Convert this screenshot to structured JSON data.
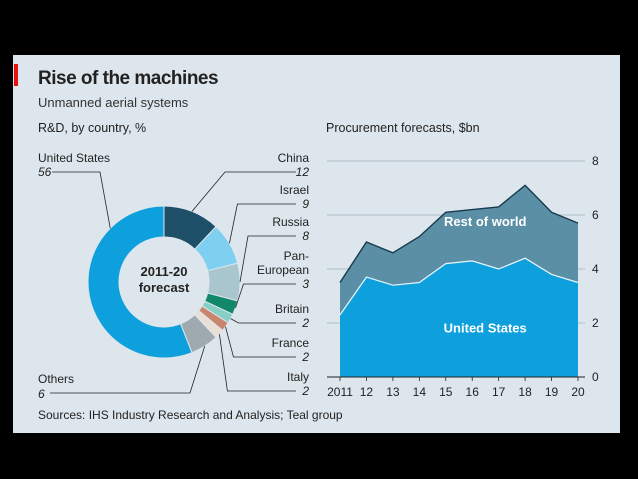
{
  "header": {
    "title": "Rise of the machines",
    "subtitle": "Unmanned aerial systems",
    "source": "Sources: IHS Industry Research and Analysis; Teal group"
  },
  "colors": {
    "background": "#dde6ec",
    "accent_red": "#e3120b",
    "us_blue": "#0ea0dd",
    "rest_teal": "#5b8fa6",
    "china": "#1d4f68",
    "israel": "#7fd0f0",
    "pan_european": "#12886a",
    "britain": "#87cfc4",
    "russia_slice": "#a9c6cf",
    "france": "#c9866f",
    "italy_light": "#eadfd6",
    "others": "#9eaab0"
  },
  "chart_data": [
    {
      "type": "pie",
      "title": "R&D, by country, %",
      "center_label": [
        "2011-20",
        "forecast"
      ],
      "slices": [
        {
          "name": "China",
          "value": "12",
          "value_num": 12,
          "color": "#1d4f68"
        },
        {
          "name": "Israel",
          "value": "9",
          "value_num": 9,
          "color": "#7fd0f0"
        },
        {
          "name": "Russia",
          "value": "8",
          "value_num": 8,
          "color": "#a9c6cf"
        },
        {
          "name": "Pan-European",
          "value": "3",
          "value_num": 3,
          "color": "#12886a"
        },
        {
          "name": "Britain",
          "value": "2",
          "value_num": 2,
          "color": "#87cfc4"
        },
        {
          "name": "France",
          "value": "2",
          "value_num": 2,
          "color": "#c9866f"
        },
        {
          "name": "Italy",
          "value": "2",
          "value_num": 2,
          "color": "#eadfd6"
        },
        {
          "name": "Others",
          "value": "6",
          "value_num": 6,
          "color": "#9eaab0"
        },
        {
          "name": "United States",
          "value": "56",
          "value_num": 56,
          "color": "#0ea0dd"
        }
      ],
      "legend_placement": "labels around the ring"
    },
    {
      "type": "area",
      "title": "Procurement forecasts, $bn",
      "x": [
        2011,
        2012,
        2013,
        2014,
        2015,
        2016,
        2017,
        2018,
        2019,
        2020
      ],
      "x_tick_labels": [
        "2011",
        "12",
        "13",
        "14",
        "15",
        "16",
        "17",
        "18",
        "19",
        "20"
      ],
      "y_ticks": [
        "0",
        "2",
        "4",
        "6",
        "8"
      ],
      "ylim": [
        0,
        8
      ],
      "stacked": true,
      "series": [
        {
          "name": "United States",
          "values": [
            2.3,
            3.7,
            3.4,
            3.5,
            4.2,
            4.3,
            4.0,
            4.4,
            3.8,
            3.5
          ],
          "color": "#0ea0dd"
        },
        {
          "name": "Rest of world",
          "values": [
            1.2,
            1.3,
            1.2,
            1.7,
            1.9,
            1.9,
            2.3,
            2.7,
            2.3,
            2.2
          ],
          "color": "#5b8fa6"
        }
      ],
      "grid": "horizontal",
      "y_axis_side": "right"
    }
  ]
}
